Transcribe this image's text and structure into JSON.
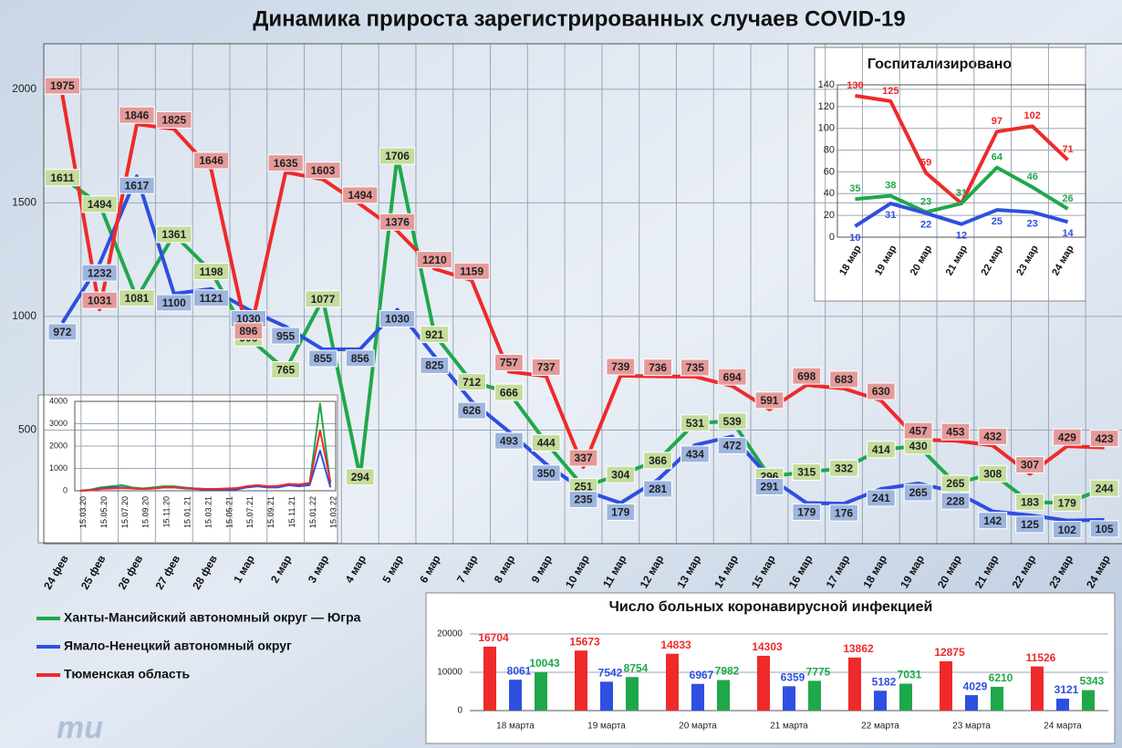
{
  "chart_data": [
    {
      "type": "line",
      "title": "Динамика прироста зарегистрированных случаев COVID-19",
      "categories": [
        "24 фев",
        "25 фев",
        "26 фев",
        "27 фев",
        "28 фев",
        "1 мар",
        "2 мар",
        "3 мар",
        "4 мар",
        "5 мар",
        "6 мар",
        "7 мар",
        "8 мар",
        "9 мар",
        "10 мар",
        "11 мар",
        "12 мар",
        "13 мар",
        "14 мар",
        "15 мар",
        "16 мар",
        "17 мар",
        "18 мар",
        "19 мар",
        "20 мар",
        "21 мар",
        "22 мар",
        "23 мар",
        "24 мар"
      ],
      "series": [
        {
          "name": "Ханты-Мансийский автономный округ — Югра",
          "color": "#1fa84a",
          "label_color": "#c5dc9c",
          "values": [
            1611,
            1494,
            1081,
            1361,
            1198,
            906,
            765,
            1077,
            294,
            1706,
            921,
            712,
            666,
            444,
            251,
            304,
            366,
            531,
            539,
            296,
            315,
            332,
            414,
            430,
            265,
            308,
            183,
            179,
            244
          ]
        },
        {
          "name": "Ямало-Ненецкий автономный округ",
          "color": "#2e4fe0",
          "label_color": "#9db5df",
          "values": [
            972,
            1232,
            1617,
            1100,
            1121,
            1030,
            955,
            855,
            856,
            1030,
            825,
            626,
            493,
            350,
            235,
            179,
            281,
            434,
            472,
            291,
            179,
            176,
            241,
            265,
            228,
            142,
            125,
            102,
            105
          ]
        },
        {
          "name": "Тюменская область",
          "color": "#ee2a2a",
          "label_color": "#e59a9a",
          "values": [
            1975,
            1031,
            1846,
            1825,
            1646,
            896,
            1635,
            1603,
            1494,
            1376,
            1210,
            1159,
            757,
            737,
            337,
            739,
            736,
            735,
            694,
            591,
            698,
            683,
            630,
            457,
            453,
            432,
            307,
            429,
            423
          ]
        }
      ],
      "ylim": [
        0,
        2200
      ],
      "yticks": [
        500,
        1000,
        1500,
        2000
      ],
      "grid": true,
      "data_labels": true,
      "legend": "bottom-left"
    },
    {
      "type": "line",
      "title": "Госпитализировано",
      "categories": [
        "18 мар",
        "19 мар",
        "20 мар",
        "21 мар",
        "22 мар",
        "23 мар",
        "24 мар"
      ],
      "series": [
        {
          "color": "#ee2a2a",
          "values": [
            130,
            125,
            59,
            31,
            97,
            102,
            71
          ]
        },
        {
          "color": "#1fa84a",
          "values": [
            35,
            38,
            23,
            31,
            64,
            46,
            26
          ]
        },
        {
          "color": "#2e4fe0",
          "values": [
            10,
            31,
            22,
            12,
            25,
            23,
            14
          ]
        }
      ],
      "ylim": [
        0,
        140
      ],
      "yticks": [
        0,
        20,
        40,
        60,
        80,
        100,
        120,
        140
      ],
      "grid": true,
      "data_labels": true
    },
    {
      "type": "line",
      "categories": [
        "15.03.20",
        null,
        "15.05.20",
        null,
        "15.07.20",
        null,
        "15.09.20",
        null,
        "15.11.20",
        null,
        "15.01.21",
        null,
        "15.03.21",
        null,
        "15.05.21",
        null,
        "15.07.21",
        null,
        "15.09.21",
        null,
        "15.11.21",
        null,
        "15.01.22",
        null,
        "15.03.22"
      ],
      "series": [
        {
          "color": "#1fa84a",
          "values": [
            0,
            50,
            150,
            200,
            250,
            150,
            100,
            150,
            200,
            200,
            150,
            100,
            80,
            60,
            80,
            100,
            200,
            250,
            200,
            200,
            300,
            250,
            300,
            3900,
            300
          ]
        },
        {
          "color": "#2e4fe0",
          "values": [
            0,
            30,
            100,
            150,
            150,
            100,
            80,
            100,
            150,
            150,
            100,
            80,
            50,
            50,
            50,
            60,
            150,
            200,
            150,
            150,
            250,
            200,
            250,
            1800,
            150
          ]
        },
        {
          "color": "#ee2a2a",
          "values": [
            0,
            20,
            80,
            100,
            120,
            100,
            80,
            100,
            150,
            150,
            120,
            100,
            80,
            80,
            100,
            120,
            200,
            250,
            200,
            220,
            300,
            280,
            350,
            2700,
            400
          ]
        }
      ],
      "ylim": [
        0,
        4000
      ],
      "yticks": [
        0,
        1000,
        2000,
        3000,
        4000
      ],
      "grid": true
    },
    {
      "type": "bar",
      "title": "Число больных  коронавирусной  инфекцией",
      "categories": [
        "18 марта",
        "19 марта",
        "20 марта",
        "21 марта",
        "22 марта",
        "23 марта",
        "24 марта"
      ],
      "series": [
        {
          "color": "#ee2a2a",
          "values": [
            16704,
            15673,
            14833,
            14303,
            13862,
            12875,
            11526
          ]
        },
        {
          "color": "#2e4fe0",
          "values": [
            8061,
            7542,
            6967,
            6359,
            5182,
            4029,
            3121
          ]
        },
        {
          "color": "#1fa84a",
          "values": [
            10043,
            8754,
            7982,
            7775,
            7031,
            6210,
            5343
          ]
        }
      ],
      "ylim": [
        0,
        20000
      ],
      "yticks": [
        0,
        10000,
        20000
      ],
      "grid": true,
      "data_labels": true
    }
  ]
}
